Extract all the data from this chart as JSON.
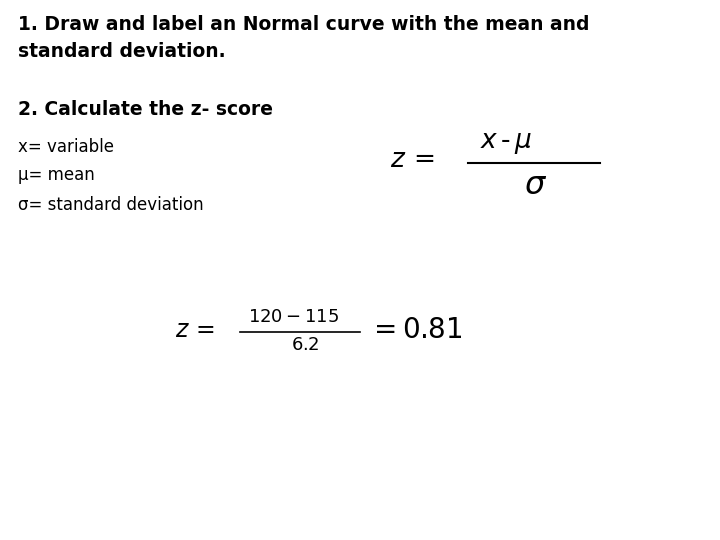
{
  "bg_color": "#ffffff",
  "line1": "1. Draw and label an Normal curve with the mean and",
  "line2": "standard deviation.",
  "line3": "2. Calculate the z- score",
  "line4_x": "x= variable",
  "line4_mu": "μ= mean",
  "line4_sigma": "σ= standard deviation",
  "font_size_heading": 13.5,
  "font_size_subheading": 13.5,
  "font_size_body": 12,
  "font_size_formula1_large": 19,
  "font_size_formula1_med": 16,
  "font_size_formula2_z": 17,
  "font_size_formula2_num": 13,
  "font_size_formula2_den": 13,
  "font_size_result": 20
}
